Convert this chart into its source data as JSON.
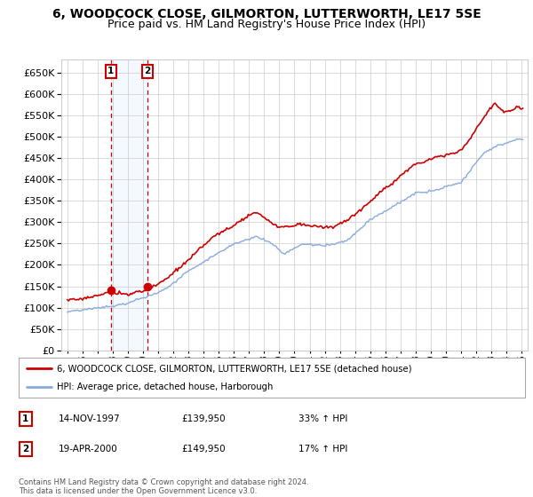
{
  "title": "6, WOODCOCK CLOSE, GILMORTON, LUTTERWORTH, LE17 5SE",
  "subtitle": "Price paid vs. HM Land Registry's House Price Index (HPI)",
  "legend_line1": "6, WOODCOCK CLOSE, GILMORTON, LUTTERWORTH, LE17 5SE (detached house)",
  "legend_line2": "HPI: Average price, detached house, Harborough",
  "footer": "Contains HM Land Registry data © Crown copyright and database right 2024.\nThis data is licensed under the Open Government Licence v3.0.",
  "sale1_date": "14-NOV-1997",
  "sale1_price": "£139,950",
  "sale1_hpi": "33% ↑ HPI",
  "sale2_date": "19-APR-2000",
  "sale2_price": "£149,950",
  "sale2_hpi": "17% ↑ HPI",
  "house_color": "#cc0000",
  "hpi_color": "#88aadd",
  "annotation_box_color": "#cc0000",
  "dashed_line_color": "#cc0000",
  "shading_color": "#ddeeff",
  "ylim": [
    0,
    680000
  ],
  "yticks": [
    0,
    50000,
    100000,
    150000,
    200000,
    250000,
    300000,
    350000,
    400000,
    450000,
    500000,
    550000,
    600000,
    650000
  ],
  "sale1_year": 1997.87,
  "sale2_year": 2000.3,
  "sale1_price_val": 139950,
  "sale2_price_val": 149950,
  "title_fontsize": 10,
  "subtitle_fontsize": 9,
  "bg_color": "#ffffff",
  "grid_color": "#cccccc"
}
